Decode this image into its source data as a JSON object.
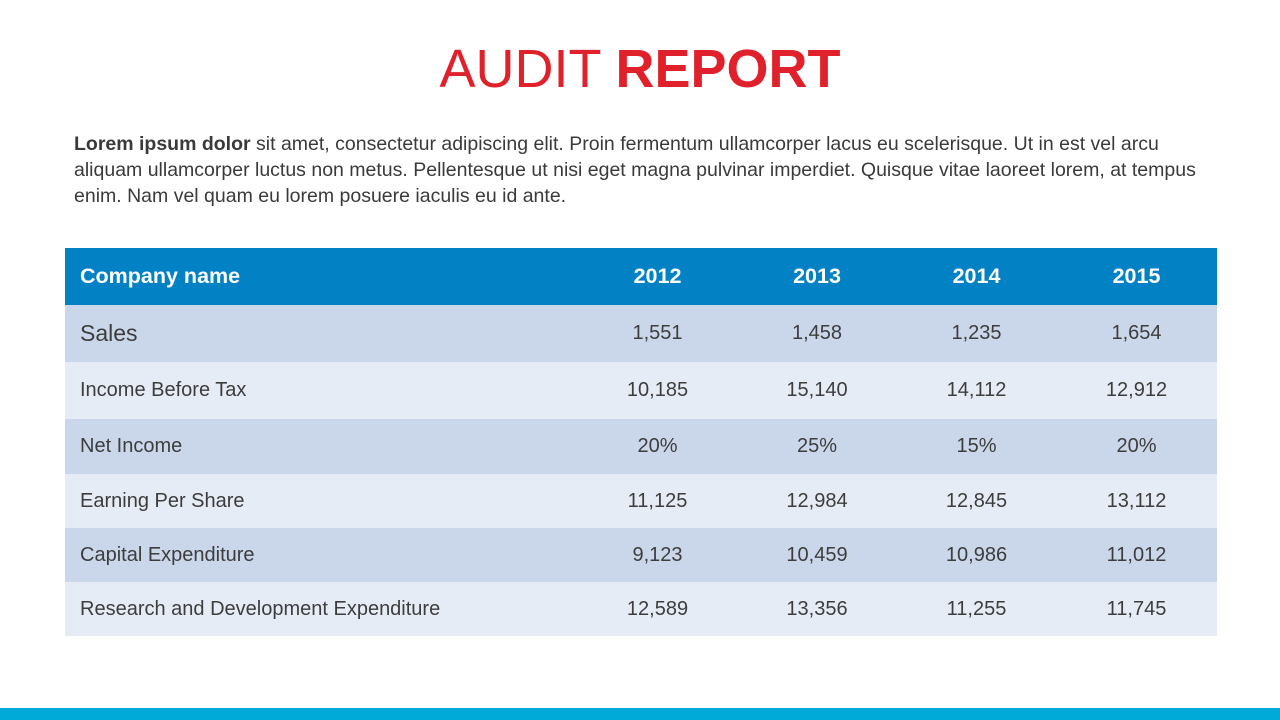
{
  "title": {
    "light": "AUDIT ",
    "bold": "REPORT"
  },
  "intro": {
    "lead": "Lorem ipsum dolor",
    "text": " sit amet, consectetur adipiscing elit. Proin fermentum ullamcorper lacus eu scelerisque. Ut in est vel arcu aliquam ullamcorper luctus non metus. Pellentesque ut nisi eget magna pulvinar imperdiet. Quisque vitae laoreet lorem, at tempus enim. Nam vel quam eu lorem posuere iaculis eu id ante."
  },
  "table": {
    "headers": [
      "Company name",
      "2012",
      "2013",
      "2014",
      "2015"
    ],
    "rows": [
      {
        "label": "Sales",
        "values": [
          "1,551",
          "1,458",
          "1,235",
          "1,654"
        ]
      },
      {
        "label": "Income Before Tax",
        "values": [
          "10,185",
          "15,140",
          "14,112",
          "12,912"
        ]
      },
      {
        "label": "Net Income",
        "values": [
          "20%",
          "25%",
          "15%",
          "20%"
        ]
      },
      {
        "label": "Earning Per Share",
        "values": [
          "11,125",
          "12,984",
          "12,845",
          "13,112"
        ]
      },
      {
        "label": "Capital Expenditure",
        "values": [
          "9,123",
          "10,459",
          "10,986",
          "11,012"
        ]
      },
      {
        "label": "Research and Development Expenditure",
        "values": [
          "12,589",
          "13,356",
          "11,255",
          "11,745"
        ]
      }
    ]
  },
  "colors": {
    "title": "#e0202b",
    "header_bg": "#0281c5",
    "row_dark": "#cad7ea",
    "row_light": "#e6ecf5",
    "bottom_bar": "#00aad8"
  }
}
